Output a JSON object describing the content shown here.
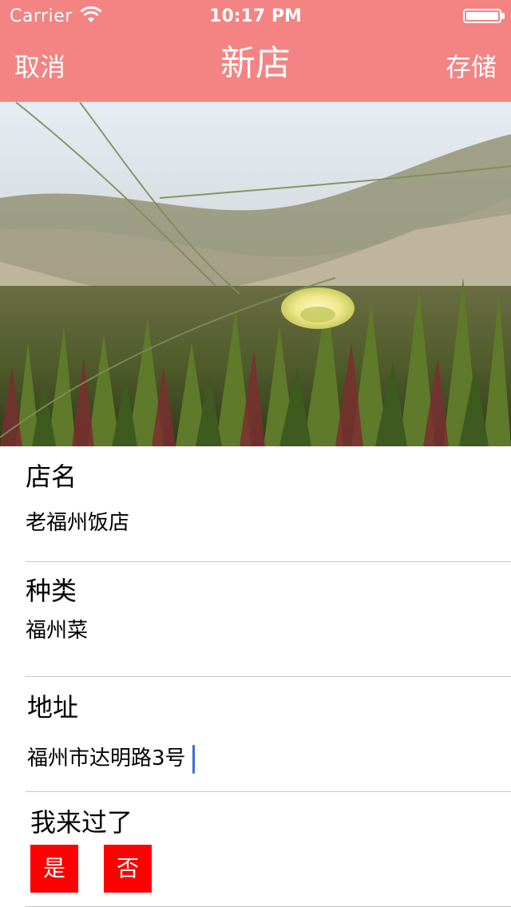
{
  "status_bar": {
    "carrier": "Carrier",
    "time": "10:17 PM",
    "wifi_icon": "wifi-icon",
    "battery_icon": "battery-icon"
  },
  "nav": {
    "cancel_label": "取消",
    "title": "新店",
    "save_label": "存储"
  },
  "colors": {
    "nav_background": "#f48383",
    "button_red": "#ff0000",
    "cursor_blue": "#3b6fe0"
  },
  "photo": {
    "description_icon": "photo-image"
  },
  "form": {
    "name": {
      "label": "店名",
      "value": "老福州饭店"
    },
    "type": {
      "label": "种类",
      "value": "福州菜"
    },
    "location": {
      "label": "地址",
      "value": "福州市达明路3号"
    },
    "visited": {
      "label": "我来过了",
      "yes_label": "是",
      "no_label": "否"
    }
  }
}
